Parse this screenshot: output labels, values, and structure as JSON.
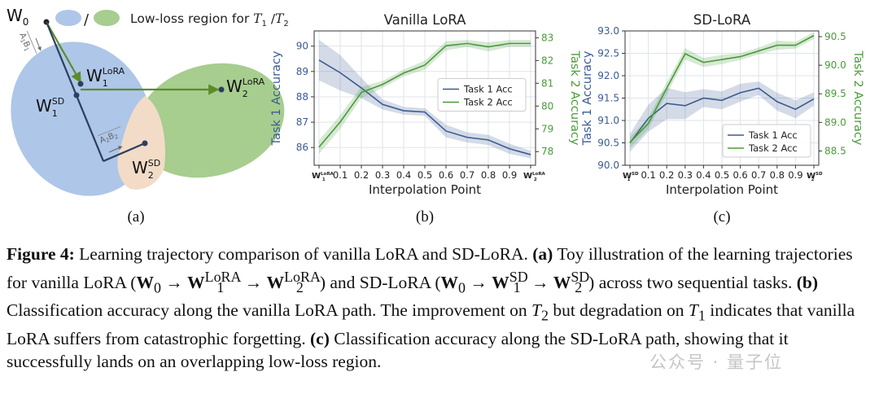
{
  "panel_a": {
    "w0": "W",
    "w0_sub": "0",
    "vec1_label": "A",
    "vec1_label_sub1": "1",
    "vec1_label_b": "B",
    "vec1_label_sub2": "1",
    "vec2_label": "A",
    "vec2_label_sub1": "2",
    "vec2_label_b": "B",
    "vec2_label_sub2": "2",
    "w1lora": "W",
    "w1lora_sub": "1",
    "w1lora_sup": "LoRA",
    "w2lora": "W",
    "w2lora_sub": "2",
    "w2lora_sup": "LoRA",
    "w1sd": "W",
    "w1sd_sub": "1",
    "w1sd_sup": "SD",
    "w2sd": "W",
    "w2sd_sub": "2",
    "w2sd_sup": "SD",
    "legend_sep": "/",
    "legend_text": "Low-loss region for ",
    "legend_t1": "T",
    "legend_t1_sub": "1",
    "legend_mid": " /",
    "legend_t2": "T",
    "legend_t2_sub": "2",
    "colors": {
      "blue": "#aec6e8",
      "green": "#a7cd8f",
      "peach": "#f2dcc7",
      "dark": "#2d3e5e",
      "arrow": "#5b8c2a"
    },
    "panel_label": "(a)"
  },
  "chart_data": [
    {
      "type": "line",
      "panel_label": "(b)",
      "title": "Vanilla LoRA",
      "xlabel": "Interpolation Point",
      "ylabel_left": "Task 1 Accuracy",
      "ylabel_right": "Task 2 Accuracy",
      "x_ticks": [
        "W",
        "0.1",
        "0.2",
        "0.3",
        "0.4",
        "0.5",
        "0.6",
        "0.7",
        "0.8",
        "0.9",
        "W"
      ],
      "x_tick_end_sub": [
        "1",
        "2"
      ],
      "x_tick_end_sup": [
        "LoRA",
        "LoRA"
      ],
      "ylim_left": [
        85.3,
        90.6
      ],
      "yticks_left": [
        86,
        87,
        88,
        89,
        90
      ],
      "ylim_right": [
        77.4,
        83.3
      ],
      "yticks_right": [
        78,
        79,
        80,
        81,
        82,
        83
      ],
      "legend_position": "center-right",
      "series": [
        {
          "name": "Task 1 Acc",
          "axis": "left",
          "color": "#3b5b92",
          "values": [
            89.45,
            88.95,
            88.35,
            87.7,
            87.45,
            87.4,
            86.65,
            86.4,
            86.3,
            85.95,
            85.72
          ],
          "band": [
            0.8,
            0.7,
            0.4,
            0.2,
            0.15,
            0.15,
            0.25,
            0.2,
            0.2,
            0.2,
            0.15
          ]
        },
        {
          "name": "Task 2 Acc",
          "axis": "right",
          "color": "#4a9a3a",
          "values": [
            78.2,
            79.3,
            80.6,
            80.95,
            81.45,
            81.8,
            82.65,
            82.75,
            82.6,
            82.75,
            82.75
          ],
          "band": [
            0.3,
            0.3,
            0.25,
            0.15,
            0.15,
            0.2,
            0.2,
            0.15,
            0.2,
            0.15,
            0.15
          ]
        }
      ]
    },
    {
      "type": "line",
      "panel_label": "(c)",
      "title": "SD-LoRA",
      "xlabel": "Interpolation Point",
      "ylabel_left": "Task 1 Accuracy",
      "ylabel_right": "Task 2 Accuracy",
      "x_ticks": [
        "W",
        "0.1",
        "0.2",
        "0.3",
        "0.4",
        "0.5",
        "0.6",
        "0.7",
        "0.8",
        "0.9",
        "W"
      ],
      "x_tick_end_sub": [
        "1",
        "2"
      ],
      "x_tick_end_sup": [
        "SD",
        "SD"
      ],
      "ylim_left": [
        90.0,
        93.0
      ],
      "yticks_left": [
        90.0,
        90.5,
        91.0,
        91.5,
        92.0,
        92.5,
        93.0
      ],
      "ylim_right": [
        88.25,
        90.6
      ],
      "yticks_right": [
        88.5,
        89.0,
        89.5,
        90.0,
        90.5
      ],
      "legend_position": "lower-right",
      "series": [
        {
          "name": "Task 1 Acc",
          "axis": "left",
          "color": "#3b5b92",
          "values": [
            90.5,
            91.05,
            91.38,
            91.33,
            91.5,
            91.45,
            91.62,
            91.72,
            91.42,
            91.25,
            91.48
          ],
          "band": [
            0.2,
            0.3,
            0.35,
            0.3,
            0.2,
            0.2,
            0.2,
            0.15,
            0.2,
            0.2,
            0.15
          ]
        },
        {
          "name": "Task 2 Acc",
          "axis": "right",
          "color": "#4a9a3a",
          "values": [
            88.65,
            88.98,
            89.6,
            90.2,
            90.05,
            90.1,
            90.15,
            90.25,
            90.35,
            90.35,
            90.52
          ],
          "band": [
            0.1,
            0.1,
            0.1,
            0.1,
            0.08,
            0.08,
            0.06,
            0.06,
            0.08,
            0.06,
            0.06
          ]
        }
      ]
    }
  ],
  "caption": {
    "fig_label": "Figure 4:",
    "p1": " Learning trajectory comparison of vanilla LoRA and SD-LoRA. ",
    "a_label": "(a)",
    "p2": " Toy illustration of the learning trajectories for vanilla LoRA (",
    "p2_w0": "W",
    "p2_w0_sub": "0",
    "arrow": " → ",
    "p2_w1": "W",
    "p2_w1_sub": "1",
    "p2_w1_sup": "LoRA",
    "p2_w2": "W",
    "p2_w2_sub": "2",
    "p2_w2_sup": "LoRA",
    "p3": ") and SD-LoRA (",
    "p3_w0": "W",
    "p3_w0_sub": "0",
    "p3_w1": "W",
    "p3_w1_sub": "1",
    "p3_w1_sup": "SD",
    "p3_w2": "W",
    "p3_w2_sub": "2",
    "p3_w2_sup": "SD",
    "p4": ") across two sequential tasks. ",
    "b_label": "(b)",
    "p5": " Classification accuracy along the vanilla LoRA path. The improvement on ",
    "t2": "T",
    "t2_sub": "2",
    "p6": " but degradation on ",
    "t1": "T",
    "t1_sub": "1",
    "p7": " indicates that vanilla LoRA suffers from catastrophic forgetting. ",
    "c_label": "(c)",
    "p8": " Classification accuracy along the SD-LoRA path, showing that it successfully lands on an overlapping low-loss region."
  },
  "watermark": "公众号 · 量子位"
}
